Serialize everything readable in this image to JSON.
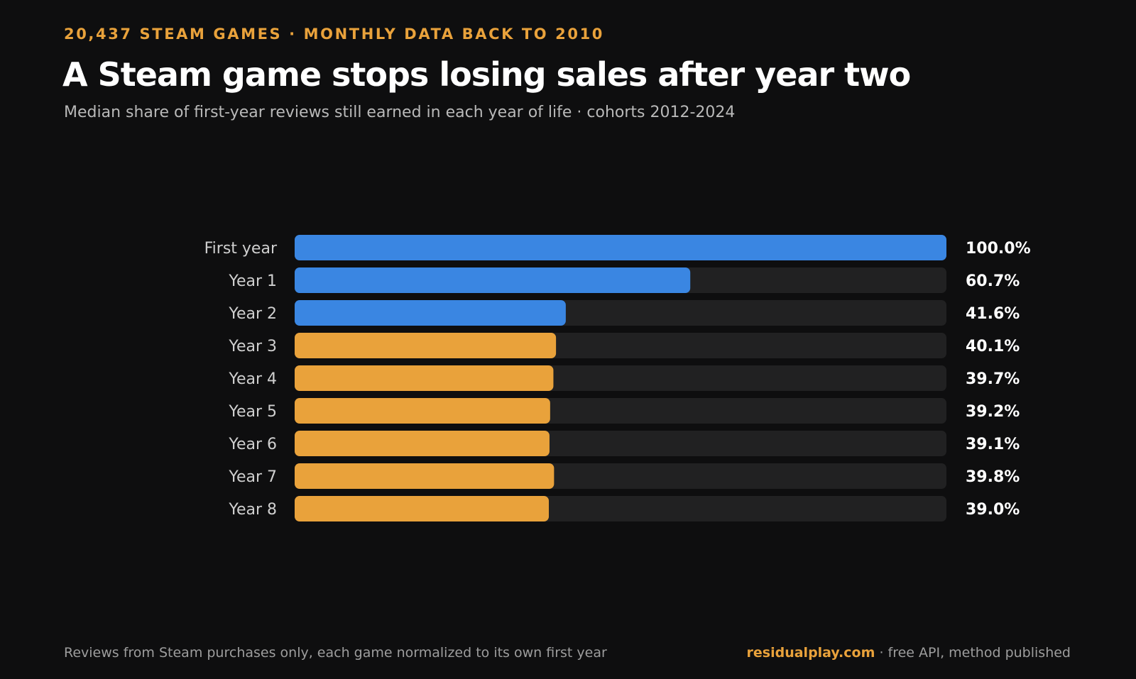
{
  "header": {
    "kicker": "20,437 STEAM GAMES · MONTHLY DATA BACK TO 2010",
    "title": "A Steam game stops losing sales after year two",
    "subtitle": "Median share of first-year reviews still earned in each year of life · cohorts 2012-2024"
  },
  "footer": {
    "note": "Reviews from Steam purchases only, each game normalized to its own first year",
    "site": "residualplay.com",
    "site_suffix": " · free API, method published"
  },
  "colors": {
    "background": "#0e0e0f",
    "early_years": "#3a86e2",
    "later_years": "#e9a23b",
    "track": "#212122",
    "label": "#cfcfcf",
    "value_label": "#ffffff",
    "accent": "#e9a23b"
  },
  "chart_data": {
    "type": "bar",
    "orientation": "horizontal",
    "categories": [
      "First year",
      "Year 1",
      "Year 2",
      "Year 3",
      "Year 4",
      "Year 5",
      "Year 6",
      "Year 7",
      "Year 8"
    ],
    "values": [
      100.0,
      60.7,
      41.6,
      40.1,
      39.7,
      39.2,
      39.1,
      39.8,
      39.0
    ],
    "value_labels": [
      "100.0%",
      "60.7%",
      "41.6%",
      "40.1%",
      "39.7%",
      "39.2%",
      "39.1%",
      "39.8%",
      "39.0%"
    ],
    "bar_color_groups": [
      "early_years",
      "early_years",
      "early_years",
      "later_years",
      "later_years",
      "later_years",
      "later_years",
      "later_years",
      "later_years"
    ],
    "xlim": [
      0,
      100
    ],
    "unit": "%",
    "grid": false,
    "legend": "none"
  }
}
